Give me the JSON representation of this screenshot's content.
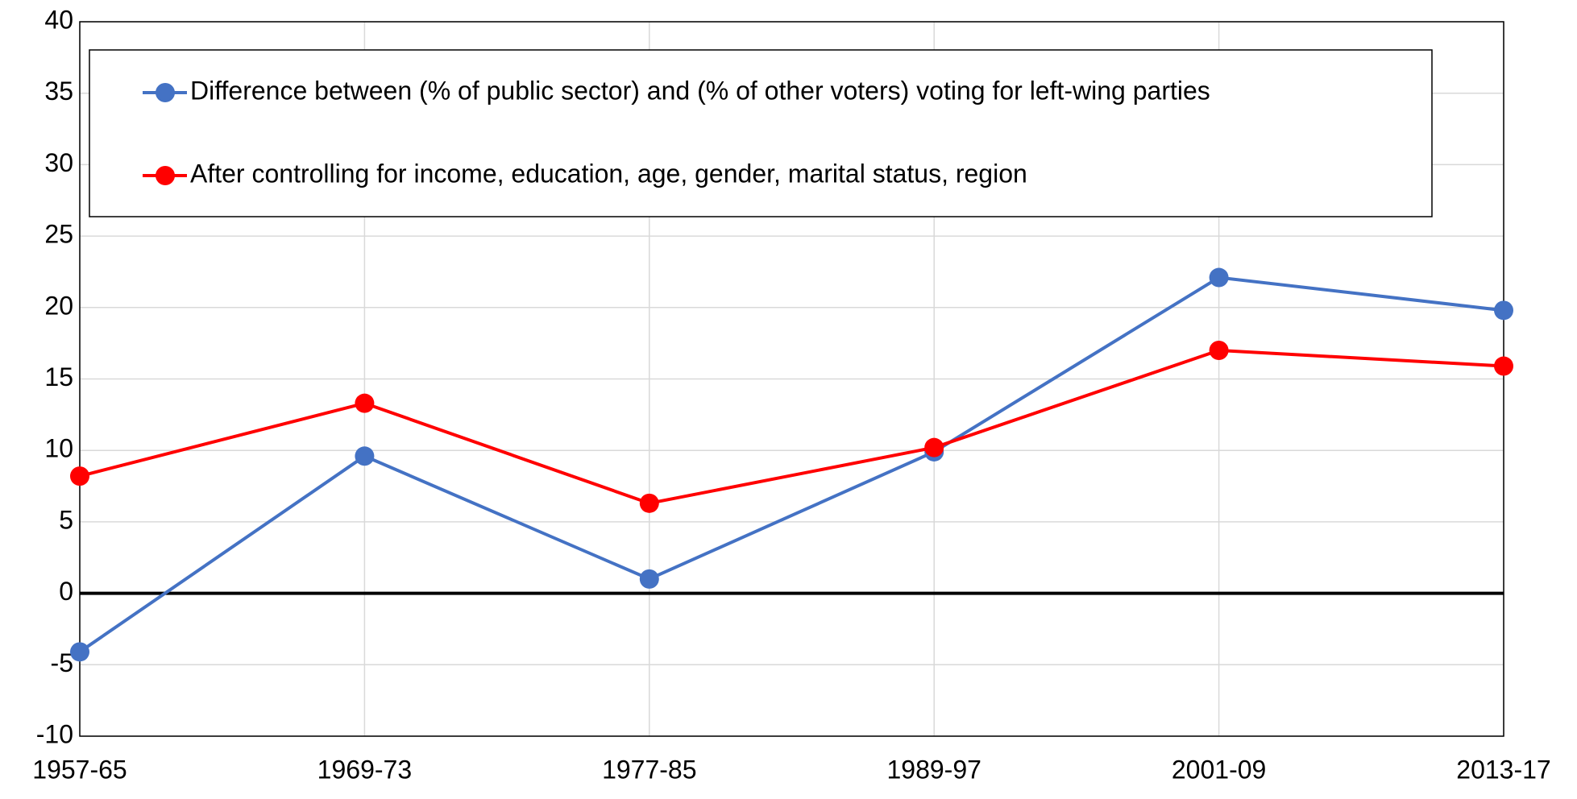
{
  "chart_data": {
    "type": "line",
    "categories": [
      "1957-65",
      "1969-73",
      "1977-85",
      "1989-97",
      "2001-09",
      "2013-17"
    ],
    "series": [
      {
        "name": "Difference between (% of public sector) and (% of other voters) voting for left-wing parties",
        "color": "#4472c4",
        "values": [
          -4.1,
          9.6,
          1.0,
          9.9,
          22.1,
          19.8
        ]
      },
      {
        "name": "After controlling for income, education, age, gender, marital status, region",
        "color": "#ff0000",
        "values": [
          8.2,
          13.3,
          6.3,
          10.2,
          17.0,
          15.9
        ]
      }
    ],
    "ylim": [
      -10,
      40
    ],
    "yticks": [
      -10,
      -5,
      0,
      5,
      10,
      15,
      20,
      25,
      30,
      35,
      40
    ],
    "grid": true,
    "legend": "top"
  }
}
